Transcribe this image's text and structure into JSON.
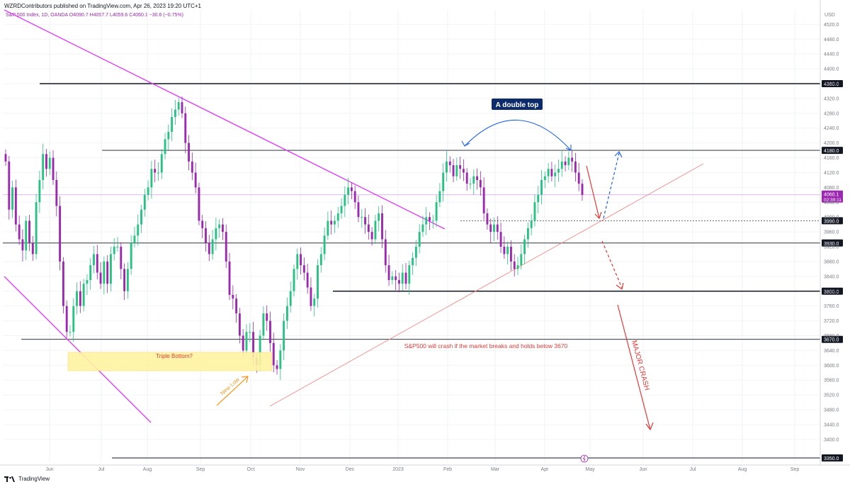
{
  "header": {
    "publisher": "WZRDContributors published on TradingView.com, Apr 26, 2023 19:20 UTC+1",
    "symbol_line": "S&P 500 Index, 1D, OANDA",
    "ohlc": {
      "o": "O4090.7",
      "h": "H4097.7",
      "l": "L4059.6",
      "c": "C4060.1",
      "chg": "−30.6 (−0.75%)"
    }
  },
  "footer": {
    "brand": "TradingView"
  },
  "chart_data": {
    "type": "candlestick",
    "currency_label": "USD",
    "y_ticks": [
      3400,
      3440,
      3480,
      3520,
      3560,
      3600,
      3640,
      3680,
      3720,
      3760,
      3800,
      3840,
      3880,
      3920,
      3960,
      4000,
      4040,
      4080,
      4120,
      4160,
      4200,
      4240,
      4280,
      4320,
      4360,
      4400,
      4440,
      4480,
      4520
    ],
    "ylim": [
      3340,
      4550
    ],
    "x_ticks": [
      "Jun",
      "Jul",
      "Aug",
      "Sep",
      "Oct",
      "Nov",
      "Dec",
      "2023",
      "Feb",
      "Mar",
      "Apr",
      "May",
      "Jun",
      "Jul",
      "Aug",
      "Sep"
    ],
    "levels": [
      {
        "value": 4360,
        "label": "4360.0",
        "color": "#131722"
      },
      {
        "value": 4180,
        "label": "4180.0",
        "color": "#131722"
      },
      {
        "value": 3990,
        "label": "3990.0",
        "color": "#131722"
      },
      {
        "value": 3930,
        "label": "3930.0",
        "color": "#131722"
      },
      {
        "value": 3800,
        "label": "3800.0",
        "color": "#131722"
      },
      {
        "value": 3670,
        "label": "3670.0",
        "color": "#131722"
      },
      {
        "value": 3350,
        "label": "3350.0",
        "color": "#131722"
      }
    ],
    "current_price": {
      "value": 4060.1,
      "label": "4060.1",
      "countdown": "02:39:11"
    },
    "annotations": {
      "double_top": "A double top",
      "triple_bottom": "Triple Bottom?",
      "new_low": "New Low",
      "crash_note": "S&P500 will crash if the market breaks and holds below 3670",
      "major_crash": "MAJOR CRASH"
    },
    "colors": {
      "up": "#26c281",
      "down": "#9c27b0",
      "trend": "#e040fb",
      "support": "#f28b8b",
      "blue": "#1e63e9",
      "red": "#e53935",
      "orange": "#f59a23",
      "zone": "#fff3a0"
    },
    "candles_daily_closes": [
      4150,
      4020,
      4080,
      3980,
      3940,
      3910,
      3990,
      3930,
      3900,
      4040,
      4100,
      4170,
      4130,
      4160,
      4100,
      4030,
      3880,
      3760,
      3690,
      3690,
      3760,
      3800,
      3760,
      3820,
      3830,
      3870,
      3900,
      3850,
      3820,
      3880,
      3820,
      3900,
      3920,
      3920,
      3860,
      3800,
      3860,
      3930,
      3950,
      3980,
      4020,
      4060,
      4080,
      4130,
      4120,
      4120,
      4170,
      4210,
      4230,
      4270,
      4290,
      4310,
      4280,
      4200,
      4150,
      4120,
      4080,
      3990,
      3970,
      3930,
      3900,
      3940,
      3970,
      3980,
      3960,
      3880,
      3790,
      3780,
      3740,
      3680,
      3640,
      3690,
      3690,
      3620,
      3600,
      3680,
      3740,
      3720,
      3660,
      3600,
      3590,
      3640,
      3720,
      3760,
      3800,
      3860,
      3900,
      3870,
      3850,
      3810,
      3760,
      3780,
      3870,
      3900,
      3950,
      3990,
      3980,
      3990,
      4010,
      4030,
      4060,
      4080,
      4070,
      4040,
      4000,
      4000,
      3980,
      3960,
      3940,
      3990,
      4010,
      3940,
      3870,
      3830,
      3840,
      3830,
      3820,
      3850,
      3820,
      3870,
      3890,
      3920,
      3960,
      3980,
      4000,
      3990,
      3990,
      4040,
      4070,
      4120,
      4150,
      4140,
      4110,
      4140,
      4130,
      4120,
      4090,
      4090,
      4110,
      4100,
      4080,
      4010,
      3980,
      3960,
      3980,
      3960,
      3920,
      3900,
      3920,
      3880,
      3860,
      3870,
      3900,
      3940,
      3970,
      3990,
      4040,
      4060,
      4100,
      4110,
      4130,
      4110,
      4120,
      4130,
      4150,
      4140,
      4160,
      4150,
      4120,
      4090,
      4060
    ]
  }
}
